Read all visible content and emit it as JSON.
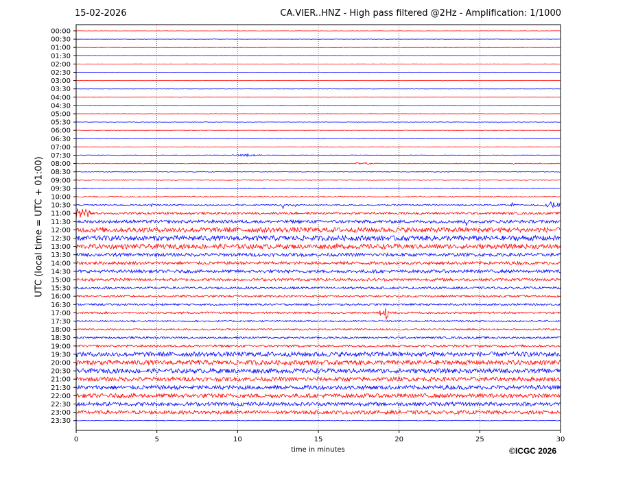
{
  "header": {
    "date": "15-02-2026",
    "station_title": "CA.VIER..HNZ - High pass filtered @2Hz - Amplification: 1/1000"
  },
  "footer": {
    "copyright": "©ICGC 2026"
  },
  "chart_data": {
    "type": "line",
    "xlabel": "time in minutes",
    "ylabel": "UTC (local time = UTC + 01:00)",
    "xlim": [
      0,
      30
    ],
    "x_ticks": [
      0,
      5,
      10,
      15,
      20,
      25,
      30
    ],
    "y_tick_labels": [
      "00:00",
      "00:30",
      "01:00",
      "01:30",
      "02:00",
      "02:30",
      "03:00",
      "03:30",
      "04:00",
      "04:30",
      "05:00",
      "05:30",
      "06:00",
      "06:30",
      "07:00",
      "07:30",
      "08:00",
      "08:30",
      "09:00",
      "09:30",
      "10:00",
      "10:30",
      "11:00",
      "11:30",
      "12:00",
      "12:30",
      "13:00",
      "13:30",
      "14:00",
      "14:30",
      "15:00",
      "15:30",
      "16:00",
      "16:30",
      "17:00",
      "17:30",
      "18:00",
      "18:30",
      "19:00",
      "19:30",
      "20:00",
      "20:30",
      "21:00",
      "21:30",
      "22:00",
      "22:30",
      "23:00",
      "23:30"
    ],
    "grid": "vertical dotted at x ticks",
    "trace_colors": [
      "#ff0000",
      "#0000ff"
    ],
    "noise_level": [
      0.2,
      0.2,
      0.2,
      0.2,
      0.2,
      0.2,
      0.2,
      0.2,
      0.2,
      0.2,
      0.2,
      0.3,
      0.3,
      0.4,
      0.4,
      0.5,
      0.5,
      0.5,
      0.5,
      0.6,
      0.8,
      1.0,
      1.6,
      2.2,
      3.6,
      3.6,
      3.4,
      2.4,
      2.2,
      2.2,
      2.0,
      1.6,
      1.4,
      1.4,
      1.4,
      1.2,
      1.2,
      1.4,
      1.6,
      3.4,
      3.4,
      3.2,
      3.0,
      3.0,
      3.0,
      2.8,
      2.6,
      0.4
    ],
    "events": [
      {
        "row": "07:30",
        "minute": 10.6,
        "amplitude": 2.4,
        "width": 0.6
      },
      {
        "row": "08:00",
        "minute": 17.8,
        "amplitude": 1.2,
        "width": 0.8
      },
      {
        "row": "08:00",
        "minute": 27.1,
        "amplitude": 2.5,
        "width": 0.05
      },
      {
        "row": "10:30",
        "minute": 4.7,
        "amplitude": 3,
        "width": 0.08
      },
      {
        "row": "10:30",
        "minute": 12.8,
        "amplitude": 6,
        "width": 0.08
      },
      {
        "row": "10:30",
        "minute": 13.6,
        "amplitude": 3,
        "width": 0.1
      },
      {
        "row": "10:30",
        "minute": 27.0,
        "amplitude": 4,
        "width": 0.1
      },
      {
        "row": "10:30",
        "minute": 29.6,
        "amplitude": 5,
        "width": 0.5
      },
      {
        "row": "11:00",
        "minute": 0.1,
        "amplitude": 12,
        "width": 0.2
      },
      {
        "row": "11:00",
        "minute": 0.5,
        "amplitude": 5,
        "width": 0.4
      },
      {
        "row": "11:00",
        "minute": 0.8,
        "amplitude": 4,
        "width": 0.15
      },
      {
        "row": "11:30",
        "minute": 24.2,
        "amplitude": 8,
        "width": 0.05
      },
      {
        "row": "17:00",
        "minute": 18.9,
        "amplitude": 6,
        "width": 0.2
      },
      {
        "row": "17:00",
        "minute": 19.2,
        "amplitude": 12,
        "width": 0.1
      },
      {
        "row": "17:30",
        "minute": 0.1,
        "amplitude": 2,
        "width": 0.05
      }
    ]
  }
}
